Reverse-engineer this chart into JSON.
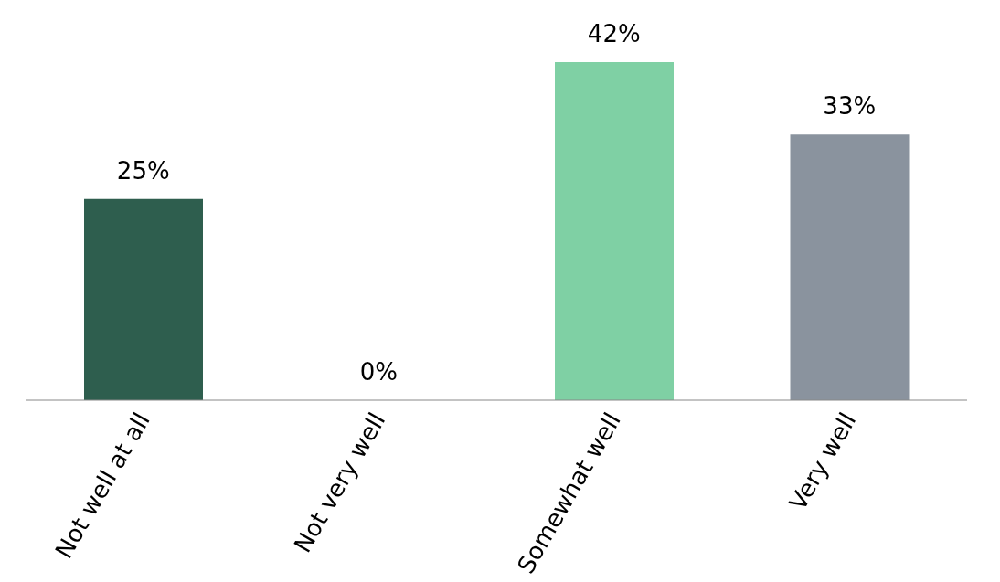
{
  "chart_data": {
    "type": "bar",
    "categories": [
      "Not well at all",
      "Not very well",
      "Somewhat well",
      "Very well"
    ],
    "values": [
      25,
      0,
      42,
      33
    ],
    "colors": [
      "#2e5e4e",
      "#8ab54a",
      "#7fd0a4",
      "#8a939e"
    ],
    "value_labels": [
      "25%",
      "0%",
      "42%",
      "33%"
    ]
  }
}
